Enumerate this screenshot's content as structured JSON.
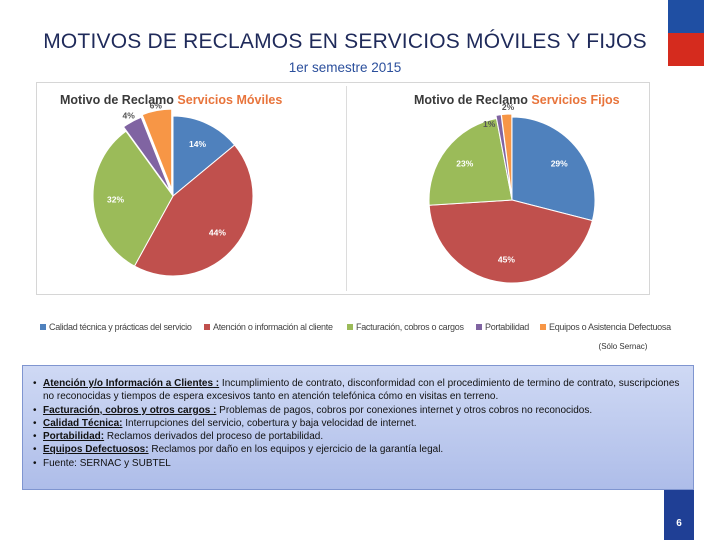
{
  "slide": {
    "title": "MOTIVOS DE RECLAMOS EN SERVICIOS MÓVILES Y FIJOS",
    "subtitle": "1er semestre  2015",
    "page_number": "6",
    "source_note": "(Sólo Sernac)"
  },
  "colors": {
    "flag_blue": "#1f4fa3",
    "flag_red": "#d52b1e",
    "title": "#1f2a5a",
    "subtitle": "#2b4f9c",
    "page_box": "#1f3f95"
  },
  "chart_data": [
    {
      "type": "pie",
      "title": "Motivo de Reclamo",
      "title_highlight": "Servicios Móviles",
      "categories": [
        "Calidad técnica y prácticas del servicio",
        "Atención o información al cliente",
        "Facturación, cobros o cargos",
        "Portabilidad",
        "Equipos o Asistencia Defectuosa"
      ],
      "values": [
        14,
        44,
        32,
        4,
        6
      ],
      "labels": [
        "14%",
        "44%",
        "32%",
        "4%",
        "6%"
      ],
      "colors": [
        "#4f81bd",
        "#c0504d",
        "#9bbb59",
        "#8064a2",
        "#f79646"
      ]
    },
    {
      "type": "pie",
      "title": "Motivo de Reclamo",
      "title_highlight": "Servicios Fijos",
      "categories": [
        "Calidad técnica y prácticas del servicio",
        "Atención o información al cliente",
        "Facturación, cobros o cargos",
        "Portabilidad",
        "Equipos o Asistencia Defectuosa"
      ],
      "values": [
        29,
        45,
        23,
        1,
        2
      ],
      "labels": [
        "29%",
        "45%",
        "23%",
        "1%",
        "2%"
      ],
      "colors": [
        "#4f81bd",
        "#c0504d",
        "#9bbb59",
        "#8064a2",
        "#f79646"
      ]
    }
  ],
  "legend": [
    {
      "label": "Calidad técnica y prácticas del servicio",
      "color": "#4f81bd"
    },
    {
      "label": "Atención o información al cliente",
      "color": "#c0504d"
    },
    {
      "label": "Facturación, cobros o cargos",
      "color": "#9bbb59"
    },
    {
      "label": "Portabilidad",
      "color": "#8064a2"
    },
    {
      "label": "Equipos o Asistencia Defectuosa",
      "color": "#f79646"
    }
  ],
  "notes": [
    {
      "lead": "Atención y/o Información a Clientes :",
      "text": " Incumplimiento de contrato, disconformidad con el procedimiento de termino de contrato, suscripciones no reconocidas y tiempos de espera excesivos tanto en atención telefónica cómo en visitas en terreno."
    },
    {
      "lead": "Facturación, cobros y otros cargos :",
      "text": "  Problemas de pagos, cobros  por conexiones internet y otros cobros no reconocidos."
    },
    {
      "lead": "Calidad Técnica:",
      "text": " Interrupciones del servicio, cobertura y  baja velocidad de internet."
    },
    {
      "lead": "Portabilidad:",
      "text": " Reclamos derivados del proceso de portabilidad."
    },
    {
      "lead": "Equipos Defectuosos:",
      "text": " Reclamos por daño en los equipos y ejercicio de la garantía legal."
    },
    {
      "lead": "",
      "text": "Fuente: SERNAC y SUBTEL"
    }
  ]
}
